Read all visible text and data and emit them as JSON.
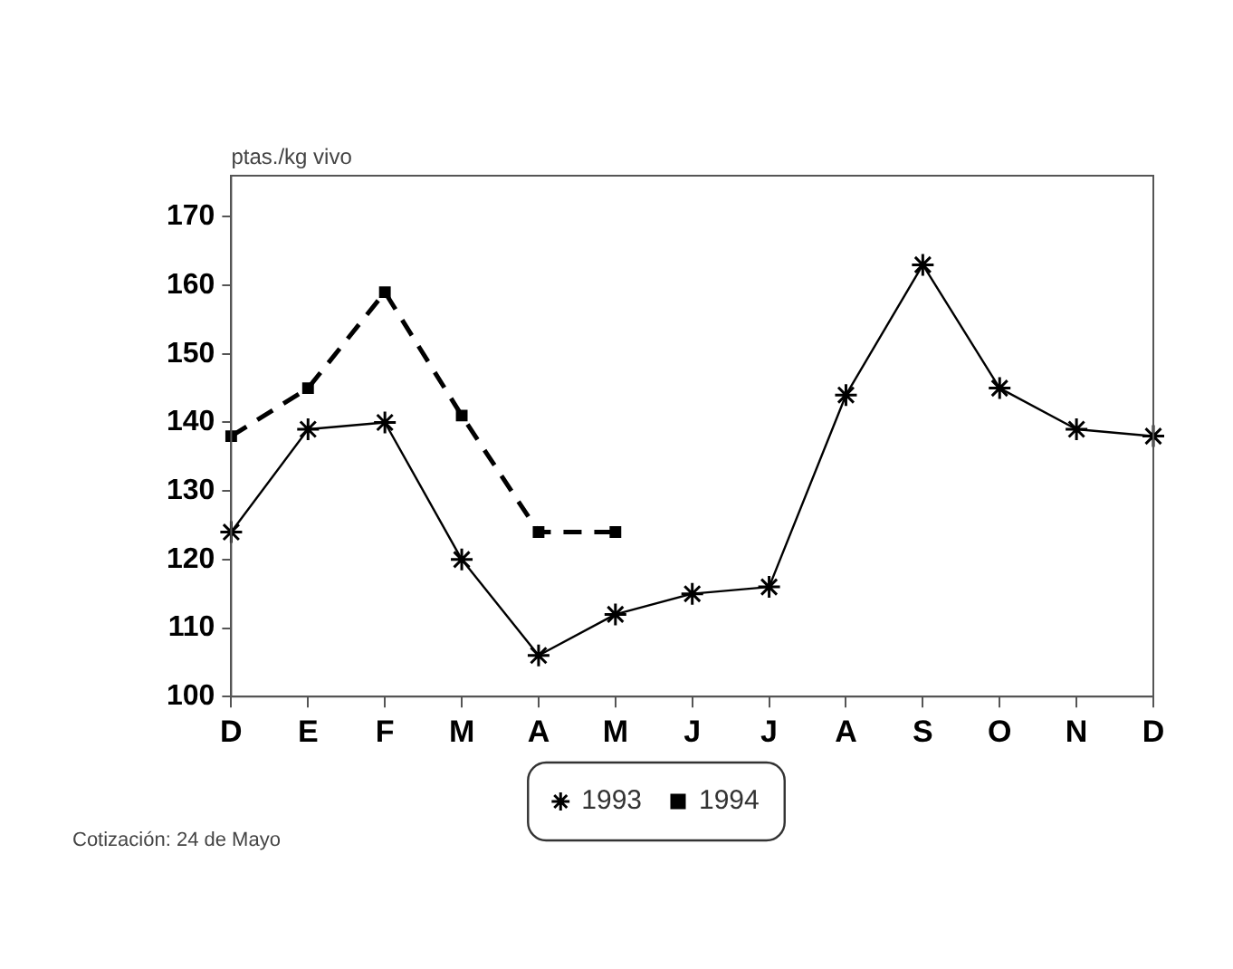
{
  "chart_data": {
    "type": "line",
    "ylabel": "ptas./kg vivo",
    "annotations": [
      "Cotización: 24 de Mayo"
    ],
    "categories": [
      "D",
      "E",
      "F",
      "M",
      "A",
      "M",
      "J",
      "J",
      "A",
      "S",
      "O",
      "N",
      "D"
    ],
    "series": [
      {
        "name": "1993",
        "color": "#000000",
        "marker": "cross",
        "line_style": "solid",
        "values": [
          124,
          139,
          140,
          120,
          106,
          112,
          115,
          116,
          144,
          163,
          145,
          139,
          138
        ]
      },
      {
        "name": "1994",
        "color": "#000000",
        "marker": "square",
        "line_style": "dashed",
        "values": [
          138,
          145,
          159,
          141,
          124,
          124,
          null,
          null,
          null,
          null,
          null,
          null,
          null
        ]
      }
    ],
    "ylim": [
      100,
      176
    ],
    "yticks": [
      100,
      110,
      120,
      130,
      140,
      150,
      160,
      170
    ],
    "grid": false,
    "legend": "bottom"
  }
}
